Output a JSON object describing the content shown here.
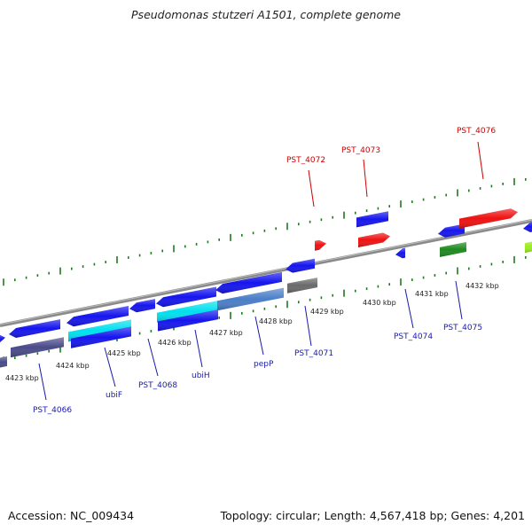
{
  "title": "Pseudomonas stutzeri A1501, complete genome",
  "footer": {
    "accession": "Accession: NC_009434",
    "topology": "Topology: circular; Length: 4,567,418 bp; Genes: 4,201"
  },
  "colors": {
    "backbone": "#8a8a8a",
    "tick": "#1e7a1e",
    "forward_label": "#cc0000",
    "reverse_label": "#1a1aaa"
  },
  "scale_labels": [
    "4423 kbp",
    "4424 kbp",
    "4425 kbp",
    "4426 kbp",
    "4427 kbp",
    "4428 kbp",
    "4429 kbp",
    "4430 kbp",
    "4431 kbp",
    "4432 kbp"
  ],
  "gene_labels": [
    {
      "text": "PST_4066",
      "strand": "reverse"
    },
    {
      "text": "ubiF",
      "strand": "reverse"
    },
    {
      "text": "PST_4068",
      "strand": "reverse"
    },
    {
      "text": "ubiH",
      "strand": "reverse"
    },
    {
      "text": "pepP",
      "strand": "reverse"
    },
    {
      "text": "PST_4071",
      "strand": "reverse"
    },
    {
      "text": "PST_4072",
      "strand": "forward"
    },
    {
      "text": "PST_4073",
      "strand": "forward"
    },
    {
      "text": "PST_4074",
      "strand": "reverse"
    },
    {
      "text": "PST_4075",
      "strand": "reverse"
    },
    {
      "text": "PST_4076",
      "strand": "forward"
    }
  ]
}
